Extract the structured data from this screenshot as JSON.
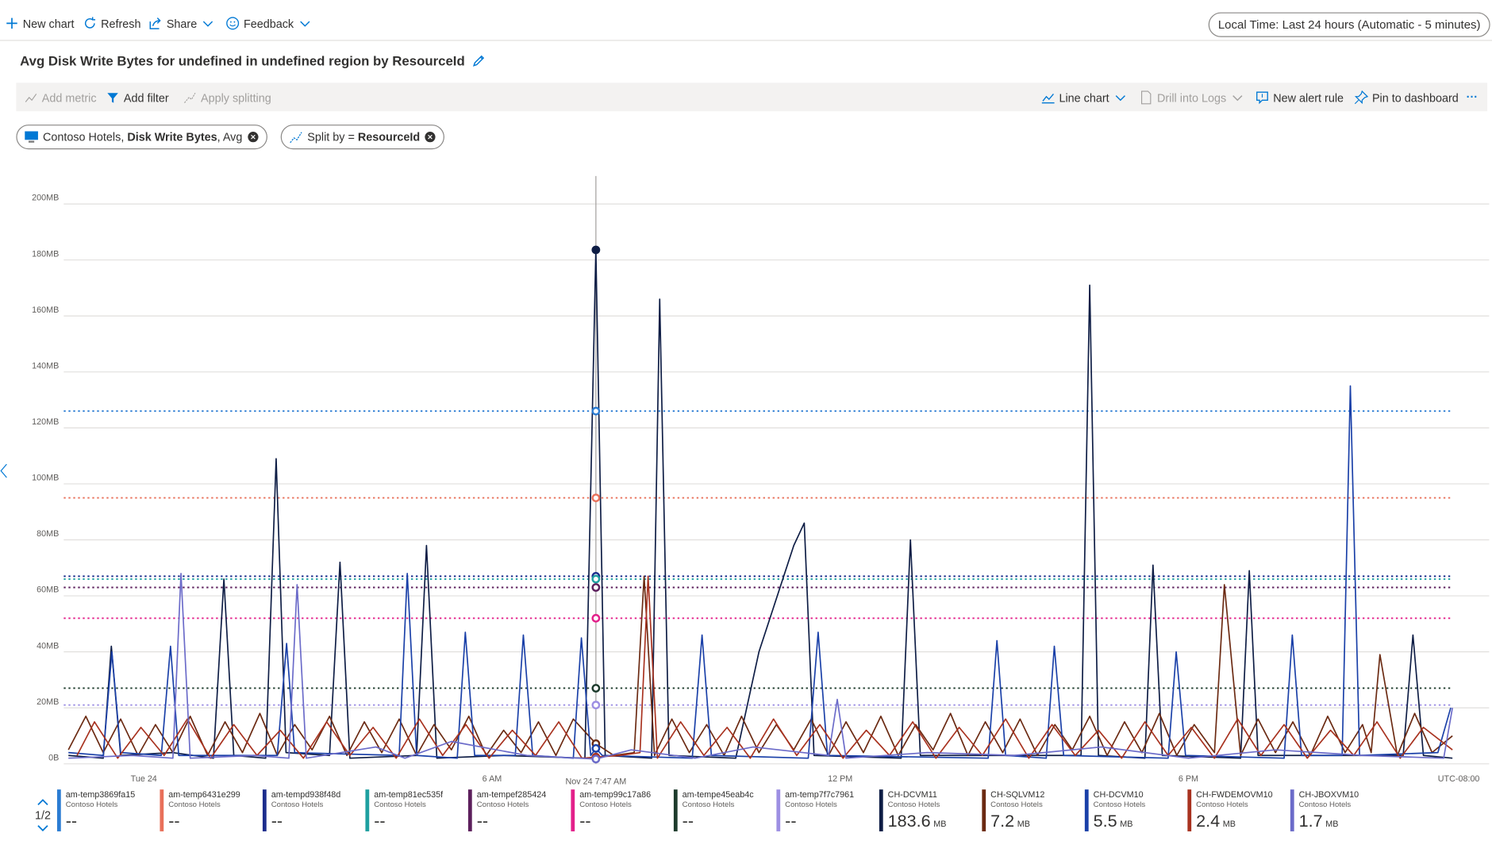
{
  "toolbar": {
    "new_chart": "New chart",
    "refresh": "Refresh",
    "share": "Share",
    "feedback": "Feedback",
    "time_range": "Local Time: Last 24 hours (Automatic - 5 minutes)"
  },
  "title": "Avg Disk Write Bytes for undefined in undefined region by ResourceId",
  "commands": {
    "add_metric": "Add metric",
    "add_filter": "Add filter",
    "apply_splitting": "Apply splitting",
    "line_chart": "Line chart",
    "drill_logs": "Drill into Logs",
    "new_alert": "New alert rule",
    "pin": "Pin to dashboard"
  },
  "filter_pill": {
    "resource": "Contoso Hotels, ",
    "metric": "Disk Write Bytes",
    "aggregation": ", Avg"
  },
  "split_pill": {
    "prefix": "Split by = ",
    "dimension": "ResourceId"
  },
  "legend_page": "1/2",
  "chart_data": {
    "type": "line",
    "grid": true,
    "xlim": [
      -1.38,
      22.56
    ],
    "xticks": [
      {
        "value": 0,
        "label": "Tue 24"
      },
      {
        "value": 6,
        "label": "6 AM"
      },
      {
        "value": 12,
        "label": "12 PM"
      },
      {
        "value": 18,
        "label": "6 PM"
      }
    ],
    "ylim": [
      0,
      210
    ],
    "yticks": [
      {
        "value": 0,
        "label": "0B"
      },
      {
        "value": 20,
        "label": "20MB"
      },
      {
        "value": 40,
        "label": "40MB"
      },
      {
        "value": 60,
        "label": "60MB"
      },
      {
        "value": 80,
        "label": "80MB"
      },
      {
        "value": 100,
        "label": "100MB"
      },
      {
        "value": 120,
        "label": "120MB"
      },
      {
        "value": 140,
        "label": "140MB"
      },
      {
        "value": 160,
        "label": "160MB"
      },
      {
        "value": 180,
        "label": "180MB"
      },
      {
        "value": 200,
        "label": "200MB"
      }
    ],
    "crosshair": {
      "x": 7.79,
      "label": "Nov 24 7:47 AM"
    },
    "timezone": "UTC-08:00",
    "series": [
      {
        "name": "am-temp3869fa15",
        "resource": "Contoso Hotels",
        "color": "#2b7cd3",
        "style": "dotted",
        "legend_value": "--",
        "x": [
          -1.38,
          7.79,
          22.56
        ],
        "values": [
          126,
          126,
          126
        ]
      },
      {
        "name": "am-temp6431e299",
        "resource": "Contoso Hotels",
        "color": "#e8705a",
        "style": "dotted",
        "legend_value": "--",
        "x": [
          -1.38,
          7.79,
          22.56
        ],
        "values": [
          95,
          95,
          95
        ]
      },
      {
        "name": "am-tempd938f48d",
        "resource": "Contoso Hotels",
        "color": "#1b2c8c",
        "style": "dotted",
        "legend_value": "--",
        "x": [
          -1.38,
          7.79,
          22.56
        ],
        "values": [
          67,
          67,
          67
        ]
      },
      {
        "name": "am-temp81ec535f",
        "resource": "Contoso Hotels",
        "color": "#1fa0a0",
        "style": "dotted",
        "legend_value": "--",
        "x": [
          -1.38,
          7.79,
          22.56
        ],
        "values": [
          66,
          66,
          66
        ]
      },
      {
        "name": "am-tempef285424",
        "resource": "Contoso Hotels",
        "color": "#5c1f5c",
        "style": "dotted",
        "legend_value": "--",
        "x": [
          -1.38,
          7.79,
          22.56
        ],
        "values": [
          63,
          63,
          63
        ]
      },
      {
        "name": "am-temp99c17a86",
        "resource": "Contoso Hotels",
        "color": "#e3208a",
        "style": "dotted",
        "legend_value": "--",
        "x": [
          -1.38,
          7.79,
          22.56
        ],
        "values": [
          52,
          52,
          52
        ]
      },
      {
        "name": "am-tempe45eab4c",
        "resource": "Contoso Hotels",
        "color": "#1d3b2c",
        "style": "dotted",
        "legend_value": "--",
        "x": [
          -1.38,
          7.79,
          22.56
        ],
        "values": [
          27,
          27,
          27
        ]
      },
      {
        "name": "am-temp7f7c7961",
        "resource": "Contoso Hotels",
        "color": "#9d8fe3",
        "style": "dotted",
        "legend_value": "--",
        "x": [
          -1.38,
          7.79,
          22.56
        ],
        "values": [
          21,
          21,
          21
        ]
      },
      {
        "name": "CH-DCVM11",
        "resource": "Contoso Hotels",
        "color": "#0e1d45",
        "style": "solid",
        "legend_value": 183.6,
        "unit": "MB",
        "x": [
          -1.3,
          -0.7,
          -0.56,
          -0.4,
          0.5,
          1.2,
          1.38,
          1.55,
          2.1,
          2.28,
          2.45,
          3.2,
          3.38,
          3.55,
          4.7,
          4.87,
          5.05,
          6.2,
          7.6,
          7.79,
          7.95,
          8.75,
          8.89,
          9.05,
          10.2,
          10.6,
          11.2,
          11.38,
          11.55,
          13.05,
          13.21,
          13.38,
          16.15,
          16.3,
          16.45,
          17.25,
          17.39,
          17.55,
          18.9,
          19.05,
          19.2,
          21.7,
          21.87,
          22.05,
          22.55
        ],
        "values": [
          3,
          2,
          42,
          3,
          4,
          2,
          66,
          3,
          2,
          109,
          4,
          3,
          72,
          2,
          3,
          78,
          2,
          3,
          2,
          183.6,
          3,
          2,
          166,
          3,
          2,
          40,
          78,
          86,
          3,
          2,
          80,
          3,
          3,
          171,
          3,
          2,
          71,
          3,
          2,
          69,
          3,
          3,
          46,
          3,
          2
        ]
      },
      {
        "name": "CH-SQLVM12",
        "resource": "Contoso Hotels",
        "color": "#6b2a12",
        "style": "solid",
        "legend_value": 7.2,
        "unit": "MB",
        "x": [
          -1.3,
          -1.0,
          -0.7,
          -0.4,
          -0.1,
          0.2,
          0.5,
          0.8,
          1.1,
          1.4,
          1.7,
          2.0,
          2.3,
          2.6,
          2.9,
          3.2,
          3.5,
          3.8,
          4.1,
          4.4,
          4.7,
          5.0,
          5.3,
          5.6,
          5.9,
          6.2,
          6.5,
          6.8,
          7.1,
          7.4,
          7.79,
          8.1,
          8.45,
          8.62,
          8.8,
          9.1,
          9.4,
          9.7,
          10.0,
          10.3,
          10.6,
          10.9,
          11.2,
          11.5,
          11.8,
          12.1,
          12.4,
          12.7,
          13.0,
          13.3,
          13.6,
          13.9,
          14.2,
          14.5,
          14.8,
          15.1,
          15.4,
          15.7,
          16.0,
          16.3,
          16.6,
          16.9,
          17.2,
          17.5,
          17.8,
          18.1,
          18.45,
          18.62,
          18.9,
          19.2,
          19.5,
          19.8,
          20.1,
          20.4,
          20.7,
          21.0,
          21.15,
          21.3,
          21.6,
          21.9,
          22.2,
          22.55
        ],
        "values": [
          5,
          17,
          4,
          16,
          3,
          14,
          4,
          17,
          3,
          15,
          4,
          18,
          3,
          14,
          5,
          17,
          3,
          15,
          4,
          16,
          3,
          14,
          5,
          17,
          3,
          12,
          4,
          15,
          3,
          16,
          7.2,
          3,
          4,
          67,
          3,
          16,
          4,
          14,
          3,
          17,
          4,
          14,
          5,
          16,
          3,
          15,
          4,
          17,
          3,
          14,
          5,
          18,
          3,
          15,
          4,
          16,
          3,
          14,
          5,
          17,
          3,
          15,
          4,
          18,
          3,
          14,
          4,
          64,
          3,
          16,
          4,
          15,
          3,
          17,
          4,
          14,
          4,
          39,
          3,
          18,
          4,
          10
        ]
      },
      {
        "name": "CH-DCVM10",
        "resource": "Contoso Hotels",
        "color": "#1a40a8",
        "style": "solid",
        "legend_value": 5.5,
        "unit": "MB",
        "x": [
          -1.3,
          -0.7,
          -0.55,
          -0.4,
          0.3,
          0.46,
          0.6,
          2.3,
          2.46,
          2.6,
          4.4,
          4.54,
          4.7,
          5.4,
          5.54,
          5.7,
          6.4,
          6.54,
          6.7,
          7.4,
          7.54,
          7.7,
          7.79,
          7.9,
          9.45,
          9.62,
          9.78,
          11.45,
          11.62,
          11.78,
          14.55,
          14.7,
          14.85,
          15.55,
          15.69,
          15.85,
          17.65,
          17.79,
          17.95,
          19.65,
          19.79,
          19.95,
          20.65,
          20.79,
          20.95,
          22.3,
          22.52
        ],
        "values": [
          4,
          3,
          40,
          4,
          3,
          42,
          3,
          3,
          43,
          4,
          3,
          68,
          3,
          2,
          47,
          3,
          3,
          46,
          3,
          2,
          45,
          3,
          5.5,
          3,
          2,
          46,
          3,
          2,
          47,
          3,
          2,
          44,
          3,
          2,
          42,
          3,
          2,
          40,
          3,
          2,
          46,
          3,
          3,
          135,
          3,
          4,
          20
        ]
      },
      {
        "name": "CH-FWDEMOVM10",
        "resource": "Contoso Hotels",
        "color": "#a8321f",
        "style": "solid",
        "legend_value": 2.4,
        "unit": "MB",
        "x": [
          -1.15,
          -0.85,
          -0.45,
          -0.05,
          0.35,
          0.75,
          1.15,
          1.55,
          1.95,
          2.35,
          2.75,
          3.15,
          3.55,
          3.95,
          4.35,
          4.75,
          5.15,
          5.55,
          5.95,
          6.35,
          6.75,
          7.15,
          7.55,
          7.79,
          8.2,
          8.55,
          8.69,
          8.85,
          9.25,
          9.65,
          10.05,
          10.45,
          10.85,
          11.25,
          11.65,
          12.05,
          12.45,
          12.85,
          13.25,
          13.65,
          14.05,
          14.45,
          14.85,
          15.25,
          15.65,
          16.05,
          16.45,
          16.85,
          17.25,
          17.65,
          18.05,
          18.45,
          18.85,
          19.25,
          19.65,
          20.05,
          20.45,
          20.85,
          21.25,
          21.65,
          22.05,
          22.55
        ],
        "values": [
          3,
          15,
          2,
          13,
          3,
          16,
          2,
          14,
          3,
          12,
          2,
          15,
          3,
          13,
          2,
          16,
          3,
          14,
          2,
          12,
          3,
          15,
          2,
          2.4,
          3,
          4,
          67,
          2,
          15,
          3,
          13,
          2,
          16,
          3,
          14,
          2,
          12,
          3,
          15,
          2,
          13,
          3,
          16,
          2,
          14,
          3,
          12,
          2,
          15,
          3,
          13,
          2,
          16,
          3,
          14,
          2,
          12,
          3,
          15,
          2,
          13,
          5
        ]
      },
      {
        "name": "CH-JBOXVM10",
        "resource": "Contoso Hotels",
        "color": "#6b6bc9",
        "style": "solid",
        "legend_value": 1.7,
        "unit": "MB",
        "x": [
          -1.3,
          -0.2,
          0.5,
          0.64,
          0.8,
          1.9,
          2.5,
          2.64,
          2.8,
          4.0,
          4.5,
          5.3,
          6.6,
          7.79,
          8.4,
          9.5,
          10.5,
          11.8,
          11.95,
          12.1,
          13.5,
          15.0,
          16.5,
          18.0,
          19.5,
          21.0,
          22.4,
          22.55
        ],
        "values": [
          2,
          3,
          2,
          68,
          2,
          3,
          2,
          64,
          2,
          6,
          2,
          8,
          3,
          1.7,
          5,
          2,
          6,
          3,
          23,
          2,
          4,
          3,
          6,
          2,
          5,
          3,
          2,
          20
        ]
      }
    ]
  }
}
